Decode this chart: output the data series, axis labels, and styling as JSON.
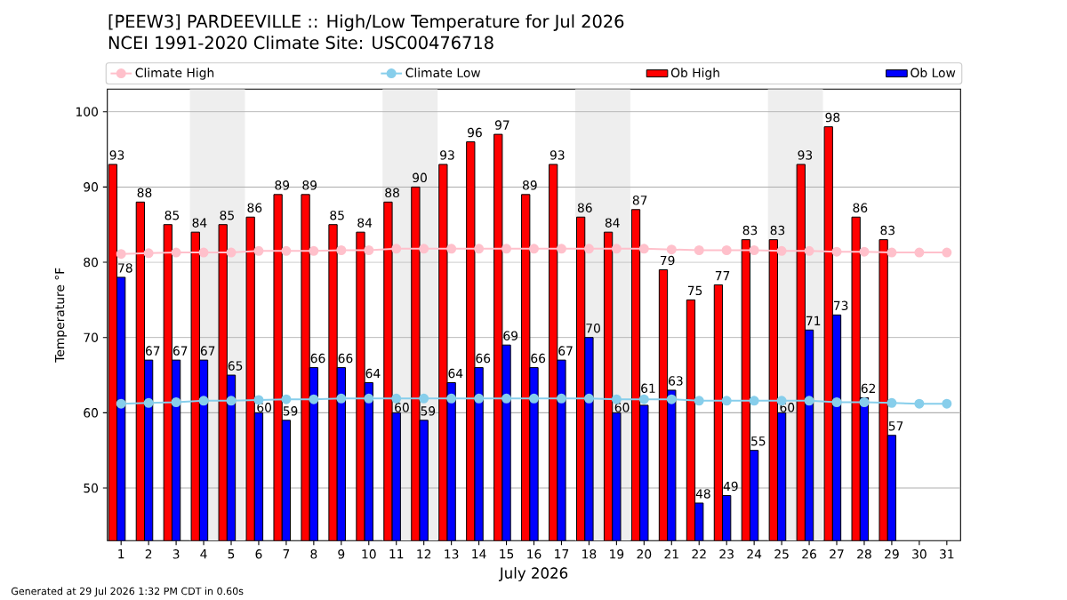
{
  "chart_data": {
    "type": "bar",
    "title": "[PEEW3] PARDEEVILLE :: High/Low Temperature for Jul 2026",
    "subtitle": "NCEI 1991-2020 Climate Site: USC00476718",
    "xlabel": "July 2026",
    "ylabel": "Temperature °F",
    "annotations": [
      "Generated at 29 Jul 2026 1:32 PM CDT in 0.60s"
    ],
    "x": [
      1,
      2,
      3,
      4,
      5,
      6,
      7,
      8,
      9,
      10,
      11,
      12,
      13,
      14,
      15,
      16,
      17,
      18,
      19,
      20,
      21,
      22,
      23,
      24,
      25,
      26,
      27,
      28,
      29,
      30,
      31
    ],
    "xlim": [
      0.5,
      31.5
    ],
    "xticks": [
      1,
      2,
      3,
      4,
      5,
      6,
      7,
      8,
      9,
      10,
      11,
      12,
      13,
      14,
      15,
      16,
      17,
      18,
      19,
      20,
      21,
      22,
      23,
      24,
      25,
      26,
      27,
      28,
      29,
      30,
      31
    ],
    "ylim": [
      43,
      103
    ],
    "yticks": [
      50,
      60,
      70,
      80,
      90,
      100
    ],
    "grid": "y",
    "legend": "top",
    "bands": [
      {
        "axis": "x",
        "from": 3.5,
        "to": 5.5,
        "color": "#eeeeee"
      },
      {
        "axis": "x",
        "from": 10.5,
        "to": 12.5,
        "color": "#eeeeee"
      },
      {
        "axis": "x",
        "from": 17.5,
        "to": 19.5,
        "color": "#eeeeee"
      },
      {
        "axis": "x",
        "from": 24.5,
        "to": 26.5,
        "color": "#eeeeee"
      }
    ],
    "series": [
      {
        "name": "Climate High",
        "type": "line",
        "color": "#ffc0cb",
        "marker": "circle",
        "values": [
          81.1,
          81.2,
          81.3,
          81.3,
          81.3,
          81.5,
          81.5,
          81.5,
          81.6,
          81.6,
          81.8,
          81.8,
          81.8,
          81.8,
          81.8,
          81.8,
          81.8,
          81.8,
          81.8,
          81.8,
          81.7,
          81.6,
          81.6,
          81.6,
          81.5,
          81.5,
          81.4,
          81.4,
          81.3,
          81.3,
          81.3
        ]
      },
      {
        "name": "Climate Low",
        "type": "line",
        "color": "#87ceeb",
        "marker": "circle",
        "values": [
          61.2,
          61.3,
          61.4,
          61.6,
          61.6,
          61.7,
          61.8,
          61.8,
          61.9,
          61.9,
          61.9,
          61.9,
          61.9,
          61.9,
          61.9,
          61.9,
          61.9,
          61.9,
          61.8,
          61.8,
          61.8,
          61.6,
          61.6,
          61.6,
          61.6,
          61.6,
          61.4,
          61.4,
          61.3,
          61.2,
          61.2
        ]
      },
      {
        "name": "Ob High",
        "color": "#ff0000",
        "data_labels": true,
        "values": [
          93,
          88,
          85,
          84,
          85,
          86,
          89,
          89,
          85,
          84,
          88,
          90,
          93,
          96,
          97,
          89,
          93,
          86,
          84,
          87,
          79,
          75,
          77,
          83,
          83,
          93,
          98,
          86,
          83,
          null,
          null
        ]
      },
      {
        "name": "Ob Low",
        "color": "#0000ff",
        "data_labels": true,
        "values": [
          78,
          67,
          67,
          67,
          65,
          60,
          59,
          66,
          66,
          64,
          60,
          59,
          64,
          66,
          69,
          66,
          67,
          70,
          60,
          61,
          63,
          48,
          49,
          55,
          60,
          71,
          73,
          62,
          57,
          null,
          null
        ]
      }
    ]
  }
}
